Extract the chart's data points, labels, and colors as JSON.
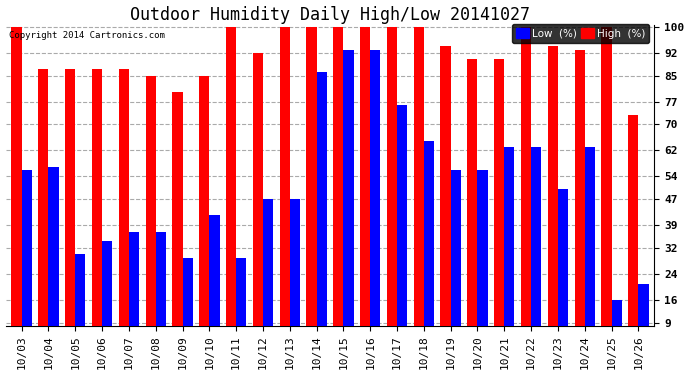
{
  "title": "Outdoor Humidity Daily High/Low 20141027",
  "copyright": "Copyright 2014 Cartronics.com",
  "dates": [
    "10/03",
    "10/04",
    "10/05",
    "10/06",
    "10/07",
    "10/08",
    "10/09",
    "10/10",
    "10/11",
    "10/12",
    "10/13",
    "10/14",
    "10/15",
    "10/16",
    "10/17",
    "10/18",
    "10/19",
    "10/20",
    "10/21",
    "10/22",
    "10/23",
    "10/24",
    "10/25",
    "10/26"
  ],
  "high": [
    100,
    87,
    87,
    87,
    87,
    85,
    80,
    85,
    100,
    92,
    100,
    100,
    100,
    100,
    100,
    100,
    94,
    90,
    90,
    100,
    94,
    93,
    100,
    73
  ],
  "low": [
    56,
    57,
    30,
    34,
    37,
    37,
    29,
    42,
    29,
    47,
    47,
    86,
    93,
    93,
    76,
    65,
    56,
    56,
    63,
    63,
    50,
    63,
    16,
    21
  ],
  "y_ticks": [
    9,
    16,
    24,
    32,
    39,
    47,
    54,
    62,
    70,
    77,
    85,
    92,
    100
  ],
  "y_min": 9,
  "y_max": 100,
  "bar_width": 0.38,
  "high_color": "#ff0000",
  "low_color": "#0000ff",
  "bg_color": "#ffffff",
  "grid_color": "#aaaaaa",
  "title_fontsize": 12,
  "tick_fontsize": 8,
  "legend_low_label": "Low  (%)",
  "legend_high_label": "High  (%)"
}
